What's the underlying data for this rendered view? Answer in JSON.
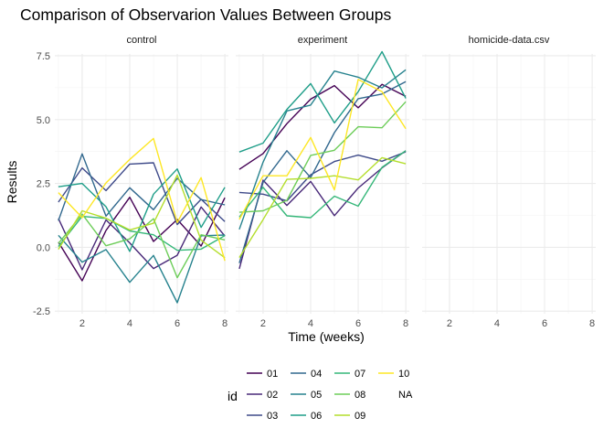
{
  "chart_data": {
    "type": "line",
    "title": "Comparison of Observarion Values Between Groups",
    "xlabel": "Time (weeks)",
    "ylabel": "Results",
    "xlim": [
      0.85,
      8.15
    ],
    "ylim": [
      -2.6,
      8.0
    ],
    "x_ticks": [
      2,
      4,
      6,
      8
    ],
    "y_ticks": [
      -2.5,
      0.0,
      2.5,
      5.0,
      7.5
    ],
    "y_tick_labels": [
      "-2.5",
      "0.0",
      "2.5",
      "5.0",
      "7.5"
    ],
    "grid": true,
    "legend": {
      "title": "id",
      "placement": "bottom",
      "entries": [
        {
          "label": "01",
          "color": "#440154"
        },
        {
          "label": "02",
          "color": "#482878"
        },
        {
          "label": "03",
          "color": "#3E4A89"
        },
        {
          "label": "04",
          "color": "#31688E"
        },
        {
          "label": "05",
          "color": "#26828E"
        },
        {
          "label": "06",
          "color": "#1F9E89"
        },
        {
          "label": "07",
          "color": "#35B779"
        },
        {
          "label": "08",
          "color": "#6DCD59"
        },
        {
          "label": "09",
          "color": "#B4DE2C"
        },
        {
          "label": "10",
          "color": "#FDE725"
        },
        {
          "label": "NA",
          "color": null
        }
      ]
    },
    "x": [
      1,
      2,
      3,
      4,
      5,
      6,
      7,
      8
    ],
    "panels": [
      {
        "name": "control",
        "series": [
          {
            "id": "01",
            "values": [
              0.2,
              -1.31,
              0.66,
              1.96,
              0.23,
              1.09,
              0.05,
              1.94
            ]
          },
          {
            "id": "02",
            "values": [
              1.13,
              -0.88,
              1.07,
              0.17,
              -0.83,
              -0.31,
              1.58,
              0.44
            ]
          },
          {
            "id": "03",
            "values": [
              1.77,
              3.11,
              2.22,
              3.26,
              3.31,
              0.89,
              1.88,
              1.01
            ]
          },
          {
            "id": "04",
            "values": [
              1.04,
              3.66,
              1.22,
              2.33,
              1.47,
              2.7,
              1.87,
              1.66
            ]
          },
          {
            "id": "05",
            "values": [
              0.47,
              -0.58,
              -0.09,
              -1.37,
              -0.32,
              -2.17,
              0.45,
              0.48
            ]
          },
          {
            "id": "06",
            "values": [
              2.37,
              2.5,
              1.59,
              -0.16,
              2.08,
              3.07,
              0.78,
              2.35
            ]
          },
          {
            "id": "07",
            "values": [
              0.03,
              1.21,
              1.13,
              0.64,
              0.49,
              -0.12,
              -0.07,
              0.46
            ]
          },
          {
            "id": "08",
            "values": [
              0.15,
              1.3,
              0.06,
              0.33,
              1.12,
              -1.19,
              0.49,
              0.29
            ]
          },
          {
            "id": "09",
            "values": [
              -0.08,
              1.43,
              1.14,
              0.68,
              0.94,
              2.83,
              0.28,
              -0.41
            ]
          },
          {
            "id": "10",
            "values": [
              2.14,
              1.16,
              2.52,
              3.44,
              4.26,
              0.97,
              2.73,
              -0.53
            ]
          }
        ]
      },
      {
        "name": "experiment",
        "series": [
          {
            "id": "01",
            "values": [
              3.05,
              3.67,
              4.84,
              5.8,
              6.33,
              5.46,
              6.38,
              5.91
            ]
          },
          {
            "id": "02",
            "values": [
              -0.84,
              2.63,
              1.64,
              2.58,
              1.24,
              2.32,
              3.11,
              3.78
            ]
          },
          {
            "id": "03",
            "values": [
              2.15,
              2.08,
              1.82,
              2.84,
              3.36,
              3.61,
              3.37,
              3.74
            ]
          },
          {
            "id": "04",
            "values": [
              -0.62,
              2.54,
              3.78,
              2.73,
              4.49,
              5.82,
              6.0,
              6.49
            ]
          },
          {
            "id": "05",
            "values": [
              0.7,
              3.33,
              5.34,
              5.57,
              6.9,
              6.66,
              6.24,
              6.95
            ]
          },
          {
            "id": "06",
            "values": [
              3.73,
              4.08,
              5.4,
              6.41,
              4.87,
              6.09,
              7.66,
              5.83
            ]
          },
          {
            "id": "07",
            "values": [
              1.18,
              2.35,
              1.23,
              1.16,
              2.0,
              1.61,
              3.13,
              3.78
            ]
          },
          {
            "id": "08",
            "values": [
              1.37,
              1.43,
              1.84,
              3.6,
              3.8,
              4.72,
              4.68,
              5.7
            ]
          },
          {
            "id": "09",
            "values": [
              -0.4,
              1.08,
              2.66,
              2.7,
              2.8,
              2.64,
              3.51,
              3.27
            ]
          },
          {
            "id": "10",
            "values": [
              1.09,
              2.8,
              2.8,
              4.3,
              2.25,
              6.57,
              6.09,
              4.64
            ]
          }
        ]
      },
      {
        "name": "homicide-data.csv",
        "series": []
      }
    ]
  }
}
